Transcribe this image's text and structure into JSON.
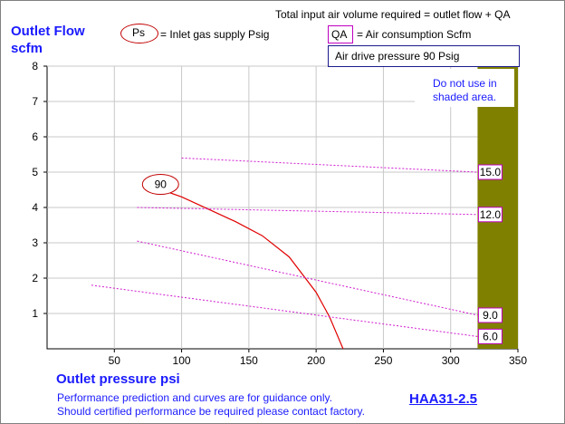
{
  "header": {
    "total_note": "Total input air volume required = outlet flow + QA",
    "ps_symbol": "Ps",
    "ps_legend": "= Inlet gas supply  Psig",
    "qa_symbol": "QA",
    "qa_legend": "= Air consumption  Scfm",
    "drive_pressure": "Air drive pressure  90 Psig"
  },
  "footer": {
    "xlabel": "Outlet pressure   psi",
    "note_line1": "Performance prediction and curves are for guidance only.",
    "note_line2": "Should certified performance be required please contact factory.",
    "model": "HAA31-2.5"
  },
  "chart_data": {
    "type": "line",
    "title": "",
    "ylabel_line1": "Outlet Flow",
    "ylabel_line2": "scfm",
    "xlim": [
      0,
      350
    ],
    "ylim": [
      0,
      8
    ],
    "xticks": [
      "50",
      "100",
      "150",
      "200",
      "250",
      "300",
      "350"
    ],
    "yticks": [
      "1",
      "2",
      "3",
      "4",
      "5",
      "6",
      "7",
      "8"
    ],
    "grid": true,
    "shaded_region": {
      "x_from": 320,
      "x_to": 350,
      "color": "#808000",
      "label_line1": "Do not use in",
      "label_line2": "shaded area."
    },
    "series": [
      {
        "kind": "flow",
        "label": "90",
        "color": "#e00000",
        "x": [
          85,
          100,
          120,
          140,
          160,
          180,
          200,
          210,
          220
        ],
        "y": [
          4.5,
          4.3,
          3.95,
          3.6,
          3.2,
          2.6,
          1.6,
          0.9,
          0.0
        ]
      },
      {
        "kind": "air_consumption",
        "label": "15.0",
        "color": "#d01ad0",
        "x": [
          100,
          320
        ],
        "y": [
          5.4,
          5.0
        ]
      },
      {
        "kind": "air_consumption",
        "label": "12.0",
        "color": "#d01ad0",
        "x": [
          67,
          320
        ],
        "y": [
          4.0,
          3.8
        ]
      },
      {
        "kind": "air_consumption",
        "label": "9.0",
        "color": "#d01ad0",
        "x": [
          67,
          320
        ],
        "y": [
          3.05,
          0.95
        ]
      },
      {
        "kind": "air_consumption",
        "label": "6.0",
        "color": "#d01ad0",
        "x": [
          33,
          320
        ],
        "y": [
          1.8,
          0.35
        ]
      }
    ]
  }
}
